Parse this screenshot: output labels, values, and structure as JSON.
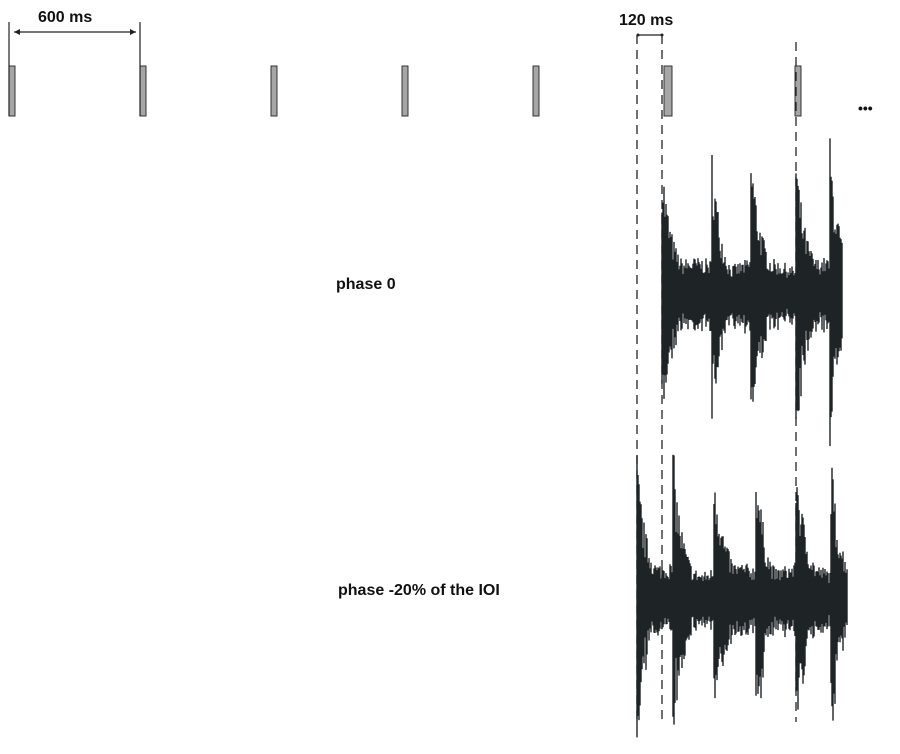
{
  "labels": {
    "ioi": "600 ms",
    "shift": "120 ms",
    "ellipsis": "•••",
    "phase0": "phase 0",
    "phase_neg": "phase -20% of the IOI"
  },
  "colors": {
    "bar": "#a6a6a6",
    "wave": "#1e2326",
    "line": "#222222"
  },
  "metronome": {
    "ioi_ms": 600,
    "clicks_shown": 7
  },
  "phases": [
    {
      "label": "phase 0",
      "offset_percent": 0
    },
    {
      "label": "phase -20% of the IOI",
      "offset_percent": -20
    }
  ]
}
